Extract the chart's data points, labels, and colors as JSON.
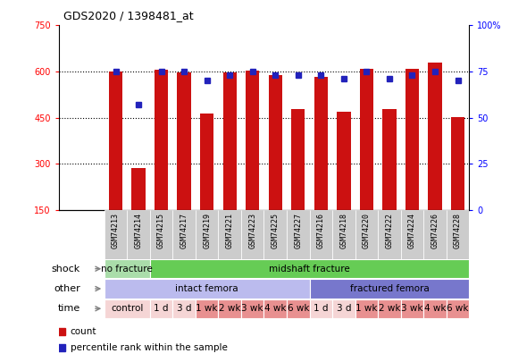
{
  "title": "GDS2020 / 1398481_at",
  "samples": [
    "GSM74213",
    "GSM74214",
    "GSM74215",
    "GSM74217",
    "GSM74219",
    "GSM74221",
    "GSM74223",
    "GSM74225",
    "GSM74227",
    "GSM74216",
    "GSM74218",
    "GSM74220",
    "GSM74222",
    "GSM74224",
    "GSM74226",
    "GSM74228"
  ],
  "bar_values": [
    600,
    285,
    605,
    598,
    462,
    598,
    602,
    588,
    477,
    582,
    470,
    610,
    478,
    608,
    630,
    452
  ],
  "dot_values": [
    75,
    57,
    75,
    75,
    70,
    73,
    75,
    73,
    73,
    73,
    71,
    75,
    71,
    73,
    75,
    70
  ],
  "ylim_left": [
    150,
    750
  ],
  "ylim_right": [
    0,
    100
  ],
  "yticks_left": [
    150,
    300,
    450,
    600,
    750
  ],
  "yticks_right": [
    0,
    25,
    50,
    75,
    100
  ],
  "bar_color": "#cc1111",
  "dot_color": "#2222bb",
  "shock_row": {
    "label": "shock",
    "groups": [
      {
        "text": "no fracture",
        "start": 0,
        "end": 2,
        "color": "#aaddaa"
      },
      {
        "text": "midshaft fracture",
        "start": 2,
        "end": 16,
        "color": "#66cc55"
      }
    ]
  },
  "other_row": {
    "label": "other",
    "groups": [
      {
        "text": "intact femora",
        "start": 0,
        "end": 9,
        "color": "#bbbbee"
      },
      {
        "text": "fractured femora",
        "start": 9,
        "end": 16,
        "color": "#7777cc"
      }
    ]
  },
  "time_row": {
    "label": "time",
    "cells": [
      {
        "text": "control",
        "start": 0,
        "end": 2,
        "color": "#f5d5d5"
      },
      {
        "text": "1 d",
        "start": 2,
        "end": 3,
        "color": "#f5d5d5"
      },
      {
        "text": "3 d",
        "start": 3,
        "end": 4,
        "color": "#f5d5d5"
      },
      {
        "text": "1 wk",
        "start": 4,
        "end": 5,
        "color": "#e89090"
      },
      {
        "text": "2 wk",
        "start": 5,
        "end": 6,
        "color": "#e89090"
      },
      {
        "text": "3 wk",
        "start": 6,
        "end": 7,
        "color": "#e89090"
      },
      {
        "text": "4 wk",
        "start": 7,
        "end": 8,
        "color": "#e89090"
      },
      {
        "text": "6 wk",
        "start": 8,
        "end": 9,
        "color": "#e89090"
      },
      {
        "text": "1 d",
        "start": 9,
        "end": 10,
        "color": "#f5d5d5"
      },
      {
        "text": "3 d",
        "start": 10,
        "end": 11,
        "color": "#f5d5d5"
      },
      {
        "text": "1 wk",
        "start": 11,
        "end": 12,
        "color": "#e89090"
      },
      {
        "text": "2 wk",
        "start": 12,
        "end": 13,
        "color": "#e89090"
      },
      {
        "text": "3 wk",
        "start": 13,
        "end": 14,
        "color": "#e89090"
      },
      {
        "text": "4 wk",
        "start": 14,
        "end": 15,
        "color": "#e89090"
      },
      {
        "text": "6 wk",
        "start": 15,
        "end": 16,
        "color": "#e89090"
      }
    ]
  },
  "legend_items": [
    {
      "color": "#cc1111",
      "label": "count"
    },
    {
      "color": "#2222bb",
      "label": "percentile rank within the sample"
    }
  ],
  "label_fontsize": 8,
  "tick_fontsize": 7,
  "sample_fontsize": 6,
  "annot_fontsize": 7.5
}
